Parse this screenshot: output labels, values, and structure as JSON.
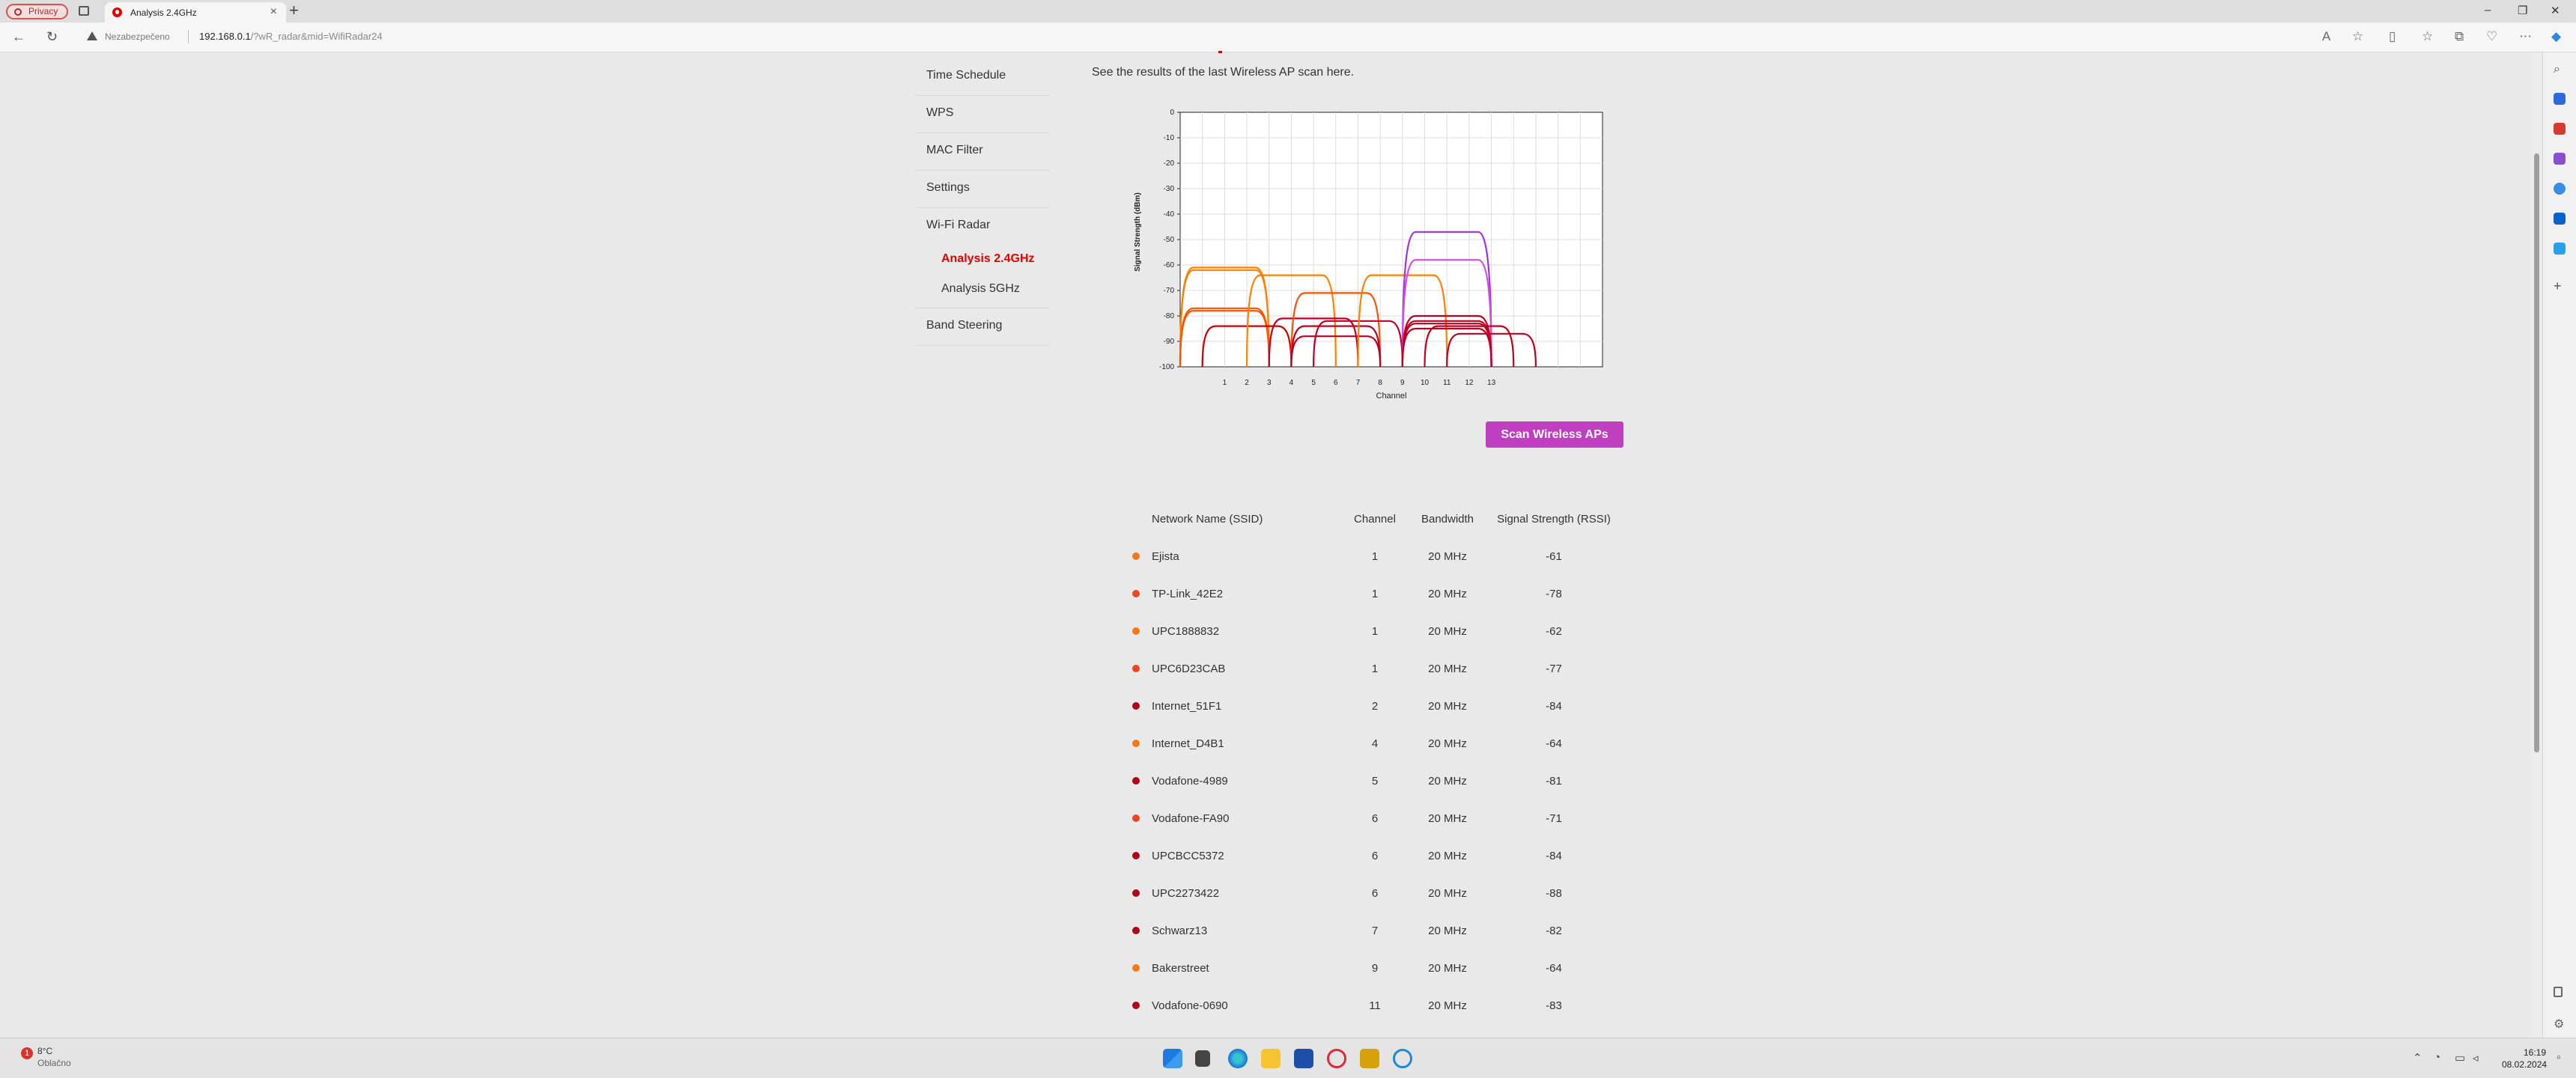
{
  "browser": {
    "profile_label": "Privacy",
    "tab_title": "Analysis 2.4GHz",
    "new_tab_glyph": "+",
    "tab_close_glyph": "×",
    "security_label": "Nezabezpečeno",
    "url_host": "192.168.0.1",
    "url_rest": "/?wR_radar&mid=WifiRadar24",
    "window_controls": [
      "–",
      "❐",
      "✕"
    ]
  },
  "sidebar": {
    "items": [
      {
        "label": "Time Schedule"
      },
      {
        "label": "WPS"
      },
      {
        "label": "MAC Filter"
      },
      {
        "label": "Settings"
      },
      {
        "label": "Wi-Fi Radar"
      },
      {
        "label": "Analysis 2.4GHz",
        "active": true
      },
      {
        "label": "Analysis 5GHz"
      },
      {
        "label": "Band Steering"
      }
    ]
  },
  "main": {
    "intro": "See the results of the last Wireless AP scan here.",
    "scan_button": "Scan Wireless APs"
  },
  "chart_data": {
    "type": "area",
    "xlabel": "Channel",
    "ylabel": "Signal Strength (dBm)",
    "x_ticks": [
      1,
      2,
      3,
      4,
      5,
      6,
      7,
      8,
      9,
      10,
      11,
      12,
      13
    ],
    "y_ticks": [
      0,
      -10,
      -20,
      -30,
      -40,
      -50,
      -60,
      -70,
      -80,
      -90,
      -100
    ],
    "ylim": [
      -100,
      0
    ],
    "xlim": [
      -1,
      18
    ],
    "grid": true,
    "series": [
      {
        "channel": 1,
        "signal": -61,
        "color": "#ff8000"
      },
      {
        "channel": 1,
        "signal": -78,
        "color": "#ff5000"
      },
      {
        "channel": 1,
        "signal": -62,
        "color": "#ff8000"
      },
      {
        "channel": 1,
        "signal": -77,
        "color": "#ff5000"
      },
      {
        "channel": 2,
        "signal": -84,
        "color": "#cc0000"
      },
      {
        "channel": 4,
        "signal": -64,
        "color": "#ff8000"
      },
      {
        "channel": 5,
        "signal": -81,
        "color": "#c00020"
      },
      {
        "channel": 6,
        "signal": -71,
        "color": "#ff5000"
      },
      {
        "channel": 6,
        "signal": -84,
        "color": "#c00020"
      },
      {
        "channel": 6,
        "signal": -88,
        "color": "#c00020"
      },
      {
        "channel": 7,
        "signal": -82,
        "color": "#c00020"
      },
      {
        "channel": 9,
        "signal": -64,
        "color": "#ff8000"
      },
      {
        "channel": 11,
        "signal": -83,
        "color": "#c00020"
      },
      {
        "channel": 11,
        "signal": -47,
        "color": "#a030e0"
      },
      {
        "channel": 11,
        "signal": -58,
        "color": "#d050e0"
      },
      {
        "channel": 11,
        "signal": -80,
        "color": "#c00020"
      },
      {
        "channel": 11,
        "signal": -82,
        "color": "#c00020"
      },
      {
        "channel": 11,
        "signal": -85,
        "color": "#c00020"
      },
      {
        "channel": 12,
        "signal": -84,
        "color": "#c00020"
      },
      {
        "channel": 13,
        "signal": -87,
        "color": "#c00020"
      }
    ]
  },
  "table": {
    "headers": [
      "Network Name (SSID)",
      "Channel",
      "Bandwidth",
      "Signal Strength (RSSI)"
    ],
    "rows": [
      {
        "ssid": "Ejista",
        "channel": "1",
        "bandwidth": "20 MHz",
        "rssi": "-61",
        "color": "#f07a18"
      },
      {
        "ssid": "TP-Link_42E2",
        "channel": "1",
        "bandwidth": "20 MHz",
        "rssi": "-78",
        "color": "#ee4422"
      },
      {
        "ssid": "UPC1888832",
        "channel": "1",
        "bandwidth": "20 MHz",
        "rssi": "-62",
        "color": "#f07a18"
      },
      {
        "ssid": "UPC6D23CAB",
        "channel": "1",
        "bandwidth": "20 MHz",
        "rssi": "-77",
        "color": "#ee4422"
      },
      {
        "ssid": "Internet_51F1",
        "channel": "2",
        "bandwidth": "20 MHz",
        "rssi": "-84",
        "color": "#b3001b"
      },
      {
        "ssid": "Internet_D4B1",
        "channel": "4",
        "bandwidth": "20 MHz",
        "rssi": "-64",
        "color": "#f07a18"
      },
      {
        "ssid": "Vodafone-4989",
        "channel": "5",
        "bandwidth": "20 MHz",
        "rssi": "-81",
        "color": "#b3001b"
      },
      {
        "ssid": "Vodafone-FA90",
        "channel": "6",
        "bandwidth": "20 MHz",
        "rssi": "-71",
        "color": "#ee4422"
      },
      {
        "ssid": "UPCBCC5372",
        "channel": "6",
        "bandwidth": "20 MHz",
        "rssi": "-84",
        "color": "#b3001b"
      },
      {
        "ssid": "UPC2273422",
        "channel": "6",
        "bandwidth": "20 MHz",
        "rssi": "-88",
        "color": "#b3001b"
      },
      {
        "ssid": "Schwarz13",
        "channel": "7",
        "bandwidth": "20 MHz",
        "rssi": "-82",
        "color": "#b3001b"
      },
      {
        "ssid": "Bakerstreet",
        "channel": "9",
        "bandwidth": "20 MHz",
        "rssi": "-64",
        "color": "#f07a18"
      },
      {
        "ssid": "Vodafone-0690",
        "channel": "11",
        "bandwidth": "20 MHz",
        "rssi": "-83",
        "color": "#b3001b"
      }
    ]
  },
  "taskbar": {
    "weather_badge": "1",
    "weather_temp": "8°C",
    "weather_desc": "Oblačno",
    "time": "16:19",
    "date": "08.02.2024"
  }
}
